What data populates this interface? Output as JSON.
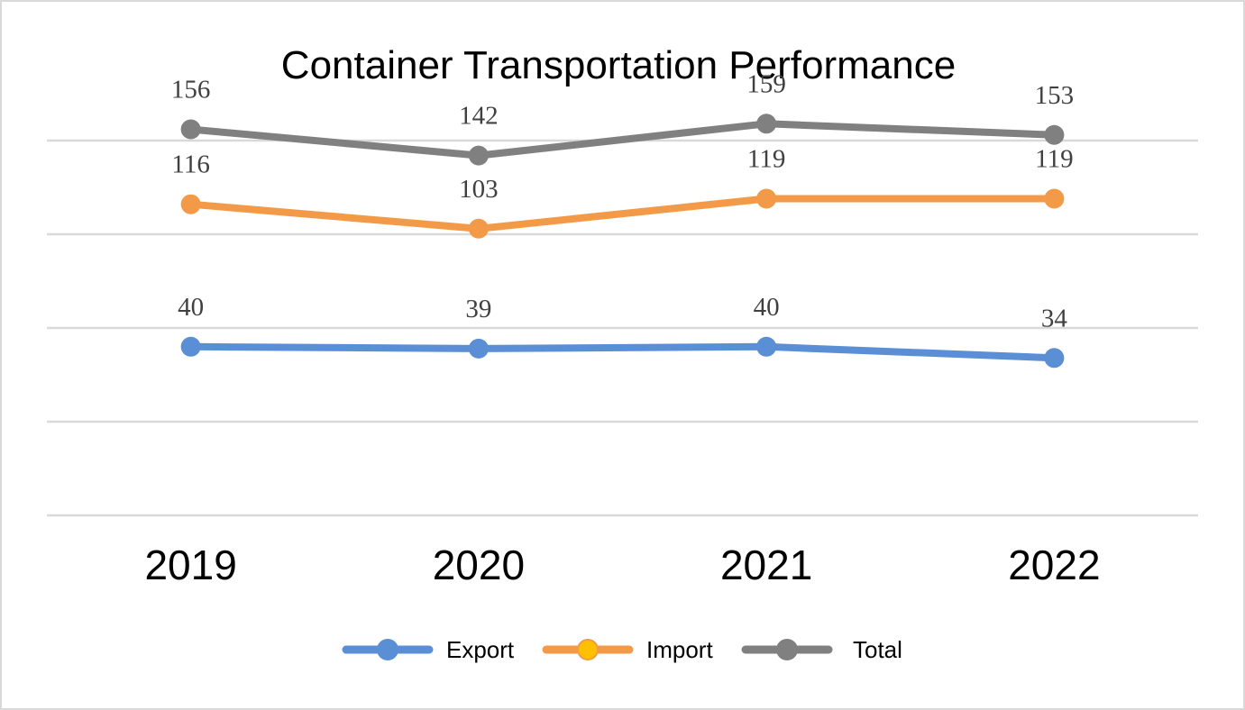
{
  "chart_data": {
    "type": "line",
    "title": "Container Transportation Performance",
    "categories": [
      "2019",
      "2020",
      "2021",
      "2022"
    ],
    "series": [
      {
        "name": "Export",
        "values": [
          40,
          39,
          40,
          34
        ],
        "color": "#5a8fd6"
      },
      {
        "name": "Import",
        "values": [
          116,
          103,
          119,
          119
        ],
        "color": "#f39a48"
      },
      {
        "name": "Total",
        "values": [
          156,
          142,
          159,
          153
        ],
        "color": "#808080"
      }
    ],
    "legend_marker_colors": {
      "Export": "#5a8fd6",
      "Import": "#ffc000",
      "Total": "#808080"
    },
    "ylim": [
      -50,
      150
    ],
    "grid": true,
    "legend_position": "bottom",
    "data_labels": true,
    "xlabel": "",
    "ylabel": ""
  }
}
